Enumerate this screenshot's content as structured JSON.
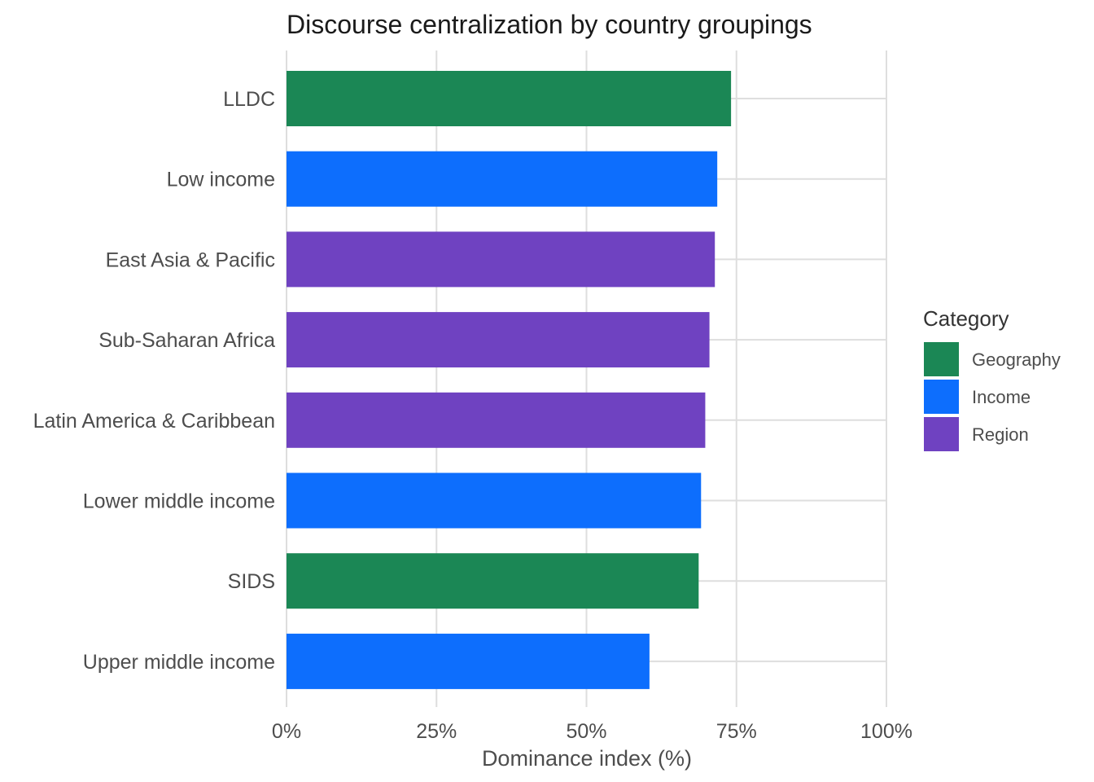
{
  "chart_data": {
    "type": "bar",
    "orientation": "horizontal",
    "title": "Discourse centralization by country groupings",
    "xlabel": "Dominance index (%)",
    "ylabel": "",
    "xlim": [
      0,
      100
    ],
    "x_ticks": [
      0,
      25,
      50,
      75,
      100
    ],
    "x_tick_labels": [
      "0%",
      "25%",
      "50%",
      "75%",
      "100%"
    ],
    "grid": true,
    "categories": [
      "LLDC",
      "Low income",
      "East Asia & Pacific",
      "Sub-Saharan Africa",
      "Latin America & Caribbean",
      "Lower middle income",
      "SIDS",
      "Upper middle income"
    ],
    "values": [
      74.1,
      71.8,
      71.4,
      70.5,
      69.8,
      69.1,
      68.7,
      60.5
    ],
    "groups": [
      "Geography",
      "Income",
      "Region",
      "Region",
      "Region",
      "Income",
      "Geography",
      "Income"
    ],
    "legend": {
      "title": "Category",
      "position": "right",
      "entries": [
        {
          "label": "Geography",
          "color": "#1b8755"
        },
        {
          "label": "Income",
          "color": "#0d6efd"
        },
        {
          "label": "Region",
          "color": "#6f42c1"
        }
      ]
    }
  }
}
